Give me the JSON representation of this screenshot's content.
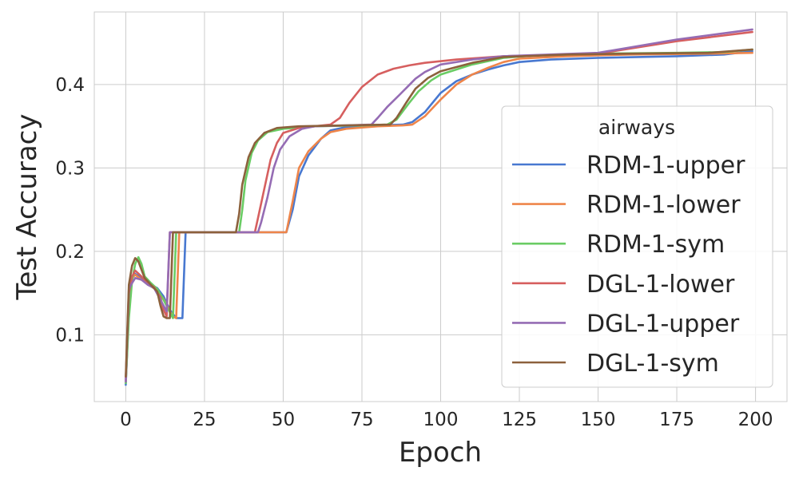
{
  "chart_data": {
    "type": "line",
    "xlabel": "Epoch",
    "ylabel": "Test Accuracy",
    "xlim": [
      -10,
      210
    ],
    "ylim": [
      0.02,
      0.487
    ],
    "x_ticks": [
      0,
      25,
      50,
      75,
      100,
      125,
      150,
      175,
      200
    ],
    "y_ticks": [
      0.1,
      0.2,
      0.3,
      0.4
    ],
    "y_tick_labels": [
      "0.1",
      "0.2",
      "0.3",
      "0.4"
    ],
    "grid": true,
    "legend": {
      "title": "airways",
      "placement": "center-right"
    },
    "series": [
      {
        "name": "RDM-1-upper",
        "color": "#4878d0",
        "points": [
          [
            0,
            0.04
          ],
          [
            1,
            0.13
          ],
          [
            2,
            0.17
          ],
          [
            3,
            0.173
          ],
          [
            5,
            0.168
          ],
          [
            7,
            0.162
          ],
          [
            10,
            0.156
          ],
          [
            12,
            0.146
          ],
          [
            14,
            0.13
          ],
          [
            16,
            0.12
          ],
          [
            18,
            0.12
          ],
          [
            19,
            0.223
          ],
          [
            25,
            0.223
          ],
          [
            50,
            0.223
          ],
          [
            51,
            0.223
          ],
          [
            53,
            0.25
          ],
          [
            55,
            0.29
          ],
          [
            58,
            0.315
          ],
          [
            62,
            0.335
          ],
          [
            65,
            0.345
          ],
          [
            70,
            0.349
          ],
          [
            80,
            0.351
          ],
          [
            88,
            0.352
          ],
          [
            91,
            0.355
          ],
          [
            95,
            0.367
          ],
          [
            100,
            0.39
          ],
          [
            105,
            0.404
          ],
          [
            110,
            0.412
          ],
          [
            115,
            0.418
          ],
          [
            120,
            0.423
          ],
          [
            125,
            0.427
          ],
          [
            135,
            0.43
          ],
          [
            150,
            0.432
          ],
          [
            175,
            0.434
          ],
          [
            190,
            0.436
          ],
          [
            199,
            0.44
          ]
        ]
      },
      {
        "name": "RDM-1-lower",
        "color": "#ee854a",
        "points": [
          [
            0,
            0.043
          ],
          [
            1,
            0.13
          ],
          [
            2,
            0.168
          ],
          [
            3,
            0.172
          ],
          [
            5,
            0.166
          ],
          [
            7,
            0.161
          ],
          [
            10,
            0.153
          ],
          [
            12,
            0.143
          ],
          [
            14,
            0.128
          ],
          [
            15,
            0.122
          ],
          [
            16,
            0.12
          ],
          [
            17,
            0.223
          ],
          [
            25,
            0.223
          ],
          [
            50,
            0.223
          ],
          [
            51,
            0.223
          ],
          [
            53,
            0.26
          ],
          [
            55,
            0.3
          ],
          [
            58,
            0.32
          ],
          [
            62,
            0.335
          ],
          [
            65,
            0.343
          ],
          [
            70,
            0.347
          ],
          [
            80,
            0.35
          ],
          [
            88,
            0.351
          ],
          [
            91,
            0.352
          ],
          [
            95,
            0.362
          ],
          [
            100,
            0.382
          ],
          [
            105,
            0.4
          ],
          [
            110,
            0.412
          ],
          [
            115,
            0.42
          ],
          [
            120,
            0.427
          ],
          [
            125,
            0.431
          ],
          [
            140,
            0.434
          ],
          [
            160,
            0.436
          ],
          [
            185,
            0.437
          ],
          [
            199,
            0.438
          ]
        ]
      },
      {
        "name": "RDM-1-sym",
        "color": "#6acc64",
        "points": [
          [
            0,
            0.042
          ],
          [
            1,
            0.12
          ],
          [
            2,
            0.165
          ],
          [
            3,
            0.185
          ],
          [
            4,
            0.193
          ],
          [
            5,
            0.185
          ],
          [
            6,
            0.17
          ],
          [
            8,
            0.162
          ],
          [
            10,
            0.155
          ],
          [
            12,
            0.142
          ],
          [
            14,
            0.127
          ],
          [
            15,
            0.12
          ],
          [
            16,
            0.223
          ],
          [
            25,
            0.223
          ],
          [
            36,
            0.223
          ],
          [
            37,
            0.25
          ],
          [
            38,
            0.285
          ],
          [
            40,
            0.318
          ],
          [
            42,
            0.333
          ],
          [
            45,
            0.343
          ],
          [
            50,
            0.347
          ],
          [
            60,
            0.35
          ],
          [
            75,
            0.351
          ],
          [
            83,
            0.352
          ],
          [
            86,
            0.358
          ],
          [
            90,
            0.378
          ],
          [
            93,
            0.392
          ],
          [
            97,
            0.405
          ],
          [
            100,
            0.412
          ],
          [
            110,
            0.424
          ],
          [
            120,
            0.432
          ],
          [
            130,
            0.435
          ],
          [
            150,
            0.437
          ],
          [
            175,
            0.438
          ],
          [
            190,
            0.439
          ],
          [
            199,
            0.442
          ]
        ]
      },
      {
        "name": "DGL-1-lower",
        "color": "#d65f5f",
        "points": [
          [
            0,
            0.045
          ],
          [
            1,
            0.15
          ],
          [
            2,
            0.17
          ],
          [
            3,
            0.177
          ],
          [
            5,
            0.17
          ],
          [
            7,
            0.162
          ],
          [
            9,
            0.157
          ],
          [
            11,
            0.145
          ],
          [
            12,
            0.13
          ],
          [
            13,
            0.122
          ],
          [
            14,
            0.223
          ],
          [
            25,
            0.223
          ],
          [
            41,
            0.223
          ],
          [
            42,
            0.24
          ],
          [
            44,
            0.275
          ],
          [
            46,
            0.31
          ],
          [
            48,
            0.33
          ],
          [
            50,
            0.342
          ],
          [
            55,
            0.348
          ],
          [
            60,
            0.35
          ],
          [
            65,
            0.352
          ],
          [
            68,
            0.36
          ],
          [
            71,
            0.378
          ],
          [
            75,
            0.397
          ],
          [
            80,
            0.412
          ],
          [
            85,
            0.419
          ],
          [
            90,
            0.423
          ],
          [
            95,
            0.426
          ],
          [
            105,
            0.43
          ],
          [
            120,
            0.434
          ],
          [
            150,
            0.437
          ],
          [
            175,
            0.452
          ],
          [
            199,
            0.463
          ]
        ]
      },
      {
        "name": "DGL-1-upper",
        "color": "#956cb4",
        "points": [
          [
            0,
            0.044
          ],
          [
            1,
            0.155
          ],
          [
            2,
            0.162
          ],
          [
            3,
            0.168
          ],
          [
            5,
            0.166
          ],
          [
            7,
            0.16
          ],
          [
            9,
            0.156
          ],
          [
            11,
            0.142
          ],
          [
            13,
            0.128
          ],
          [
            14,
            0.223
          ],
          [
            25,
            0.223
          ],
          [
            42,
            0.223
          ],
          [
            43,
            0.235
          ],
          [
            45,
            0.265
          ],
          [
            47,
            0.3
          ],
          [
            49,
            0.322
          ],
          [
            52,
            0.338
          ],
          [
            56,
            0.347
          ],
          [
            60,
            0.35
          ],
          [
            70,
            0.351
          ],
          [
            78,
            0.352
          ],
          [
            80,
            0.36
          ],
          [
            83,
            0.373
          ],
          [
            87,
            0.388
          ],
          [
            92,
            0.407
          ],
          [
            95,
            0.415
          ],
          [
            100,
            0.424
          ],
          [
            110,
            0.43
          ],
          [
            120,
            0.434
          ],
          [
            150,
            0.438
          ],
          [
            175,
            0.454
          ],
          [
            199,
            0.466
          ]
        ]
      },
      {
        "name": "DGL-1-sym",
        "color": "#8c613c",
        "points": [
          [
            0,
            0.05
          ],
          [
            1,
            0.16
          ],
          [
            2,
            0.183
          ],
          [
            3,
            0.192
          ],
          [
            4,
            0.188
          ],
          [
            5,
            0.178
          ],
          [
            6,
            0.168
          ],
          [
            8,
            0.16
          ],
          [
            10,
            0.152
          ],
          [
            11,
            0.135
          ],
          [
            12,
            0.122
          ],
          [
            13,
            0.12
          ],
          [
            14,
            0.12
          ],
          [
            15,
            0.223
          ],
          [
            25,
            0.223
          ],
          [
            35,
            0.223
          ],
          [
            36,
            0.245
          ],
          [
            37,
            0.28
          ],
          [
            39,
            0.313
          ],
          [
            41,
            0.33
          ],
          [
            44,
            0.342
          ],
          [
            48,
            0.348
          ],
          [
            55,
            0.35
          ],
          [
            70,
            0.351
          ],
          [
            84,
            0.352
          ],
          [
            86,
            0.36
          ],
          [
            89,
            0.378
          ],
          [
            92,
            0.395
          ],
          [
            96,
            0.408
          ],
          [
            100,
            0.416
          ],
          [
            110,
            0.426
          ],
          [
            120,
            0.433
          ],
          [
            140,
            0.436
          ],
          [
            160,
            0.437
          ],
          [
            185,
            0.438
          ],
          [
            199,
            0.442
          ]
        ]
      }
    ]
  }
}
